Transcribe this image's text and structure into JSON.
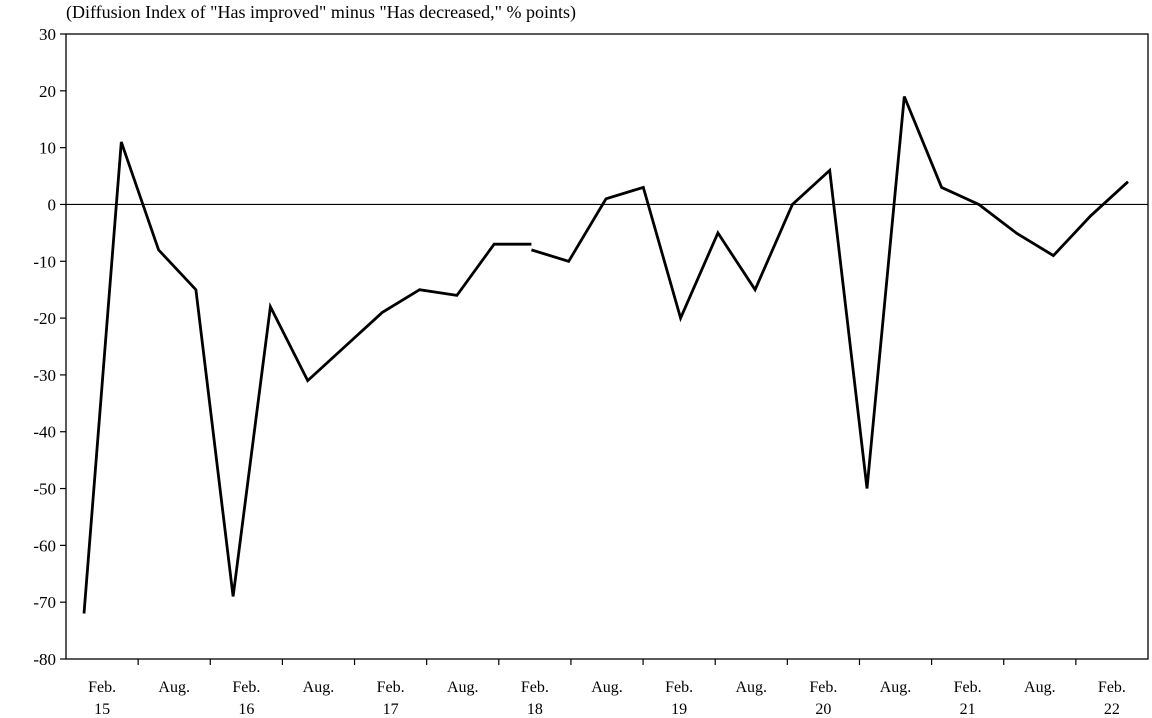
{
  "chart_data": {
    "type": "line",
    "title": "(Diffusion Index of \"Has improved\" minus \"Has decreased,\" % points)",
    "xlabel": "",
    "ylabel": "",
    "ylim": [
      -80,
      30
    ],
    "yticks": [
      "30",
      "20",
      "10",
      "0",
      "-10",
      "-20",
      "-30",
      "-40",
      "-50",
      "-60",
      "-70",
      "-80"
    ],
    "xtick_labels": [
      {
        "month": "Feb.",
        "year": "15"
      },
      {
        "month": "Aug.",
        "year": ""
      },
      {
        "month": "Feb.",
        "year": "16"
      },
      {
        "month": "Aug.",
        "year": ""
      },
      {
        "month": "Feb.",
        "year": "17"
      },
      {
        "month": "Aug.",
        "year": ""
      },
      {
        "month": "Feb.",
        "year": "18"
      },
      {
        "month": "Aug.",
        "year": ""
      },
      {
        "month": "Feb.",
        "year": "19"
      },
      {
        "month": "Aug.",
        "year": ""
      },
      {
        "month": "Feb.",
        "year": "20"
      },
      {
        "month": "Aug.",
        "year": ""
      },
      {
        "month": "Feb.",
        "year": "21"
      },
      {
        "month": "Aug.",
        "year": ""
      },
      {
        "month": "Feb.",
        "year": "22"
      }
    ],
    "grid": false,
    "zero_line": true,
    "series": [
      {
        "segments": [
          [
            {
              "x": "2015-02",
              "y": -72
            },
            {
              "x": "2015-05",
              "y": 11
            },
            {
              "x": "2015-08",
              "y": -8
            },
            {
              "x": "2015-11",
              "y": -15
            },
            {
              "x": "2016-02",
              "y": -69
            },
            {
              "x": "2016-05",
              "y": -18
            },
            {
              "x": "2016-08",
              "y": -31
            },
            {
              "x": "2016-11",
              "y": -25
            },
            {
              "x": "2017-02",
              "y": -19
            },
            {
              "x": "2017-05",
              "y": -15
            },
            {
              "x": "2017-08",
              "y": -16
            },
            {
              "x": "2017-11",
              "y": -7
            },
            {
              "x": "2018-02",
              "y": -7
            }
          ],
          [
            {
              "x": "2018-02",
              "y": -8
            },
            {
              "x": "2018-05",
              "y": -10
            },
            {
              "x": "2018-08",
              "y": 1
            },
            {
              "x": "2018-11",
              "y": 3
            },
            {
              "x": "2019-02",
              "y": -20
            },
            {
              "x": "2019-05",
              "y": -5
            },
            {
              "x": "2019-08",
              "y": -15
            },
            {
              "x": "2019-11",
              "y": 0
            },
            {
              "x": "2020-02",
              "y": 6
            },
            {
              "x": "2020-05",
              "y": -50
            },
            {
              "x": "2020-08",
              "y": 19
            },
            {
              "x": "2020-11",
              "y": 3
            },
            {
              "x": "2021-02",
              "y": 0
            },
            {
              "x": "2021-05",
              "y": -5
            },
            {
              "x": "2021-08",
              "y": -9
            },
            {
              "x": "2021-11",
              "y": -2
            },
            {
              "x": "2022-02",
              "y": 4
            }
          ]
        ]
      }
    ]
  }
}
